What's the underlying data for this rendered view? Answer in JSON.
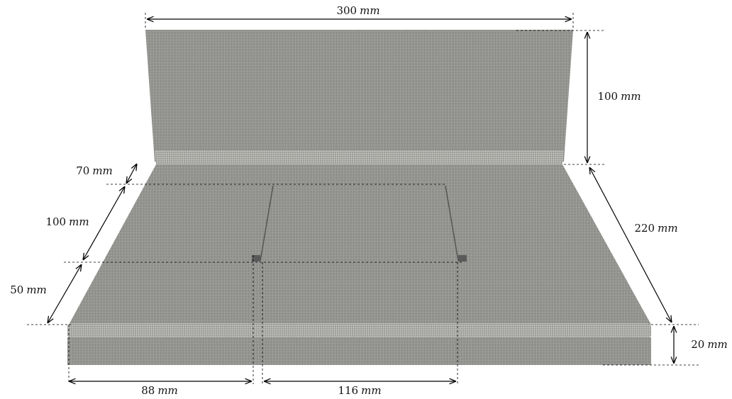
{
  "dimensions": [
    {
      "value": 300,
      "unit": "mm"
    },
    {
      "value": 100,
      "unit": "mm"
    },
    {
      "value": 70,
      "unit": "mm"
    },
    {
      "value": 100,
      "unit": "mm"
    },
    {
      "value": 50,
      "unit": "mm"
    },
    {
      "value": 220,
      "unit": "mm"
    },
    {
      "value": 20,
      "unit": "mm"
    },
    {
      "value": 88,
      "unit": "mm"
    },
    {
      "value": 116,
      "unit": "mm"
    }
  ]
}
